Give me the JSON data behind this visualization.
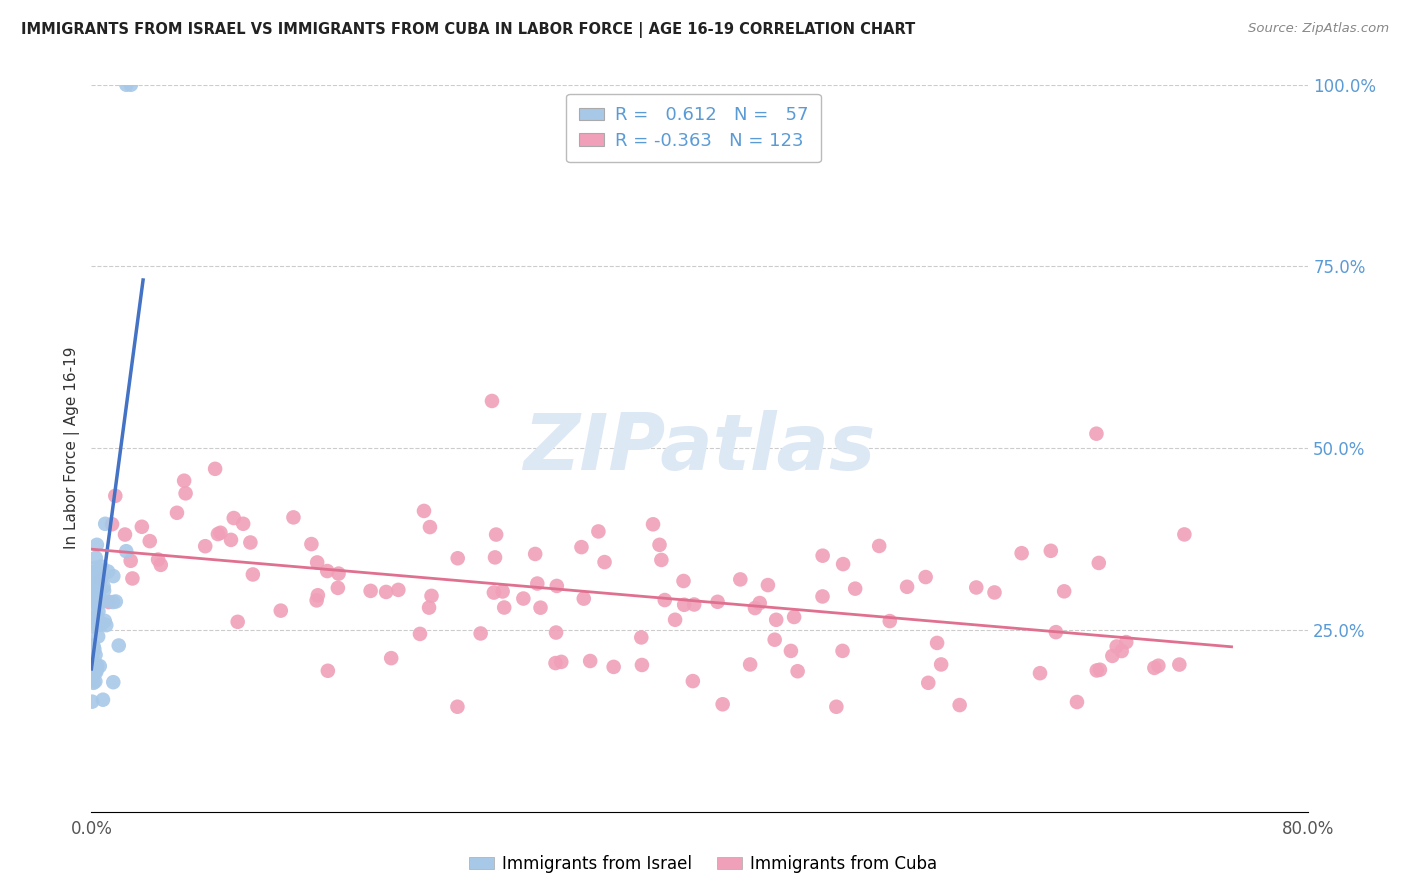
{
  "title": "IMMIGRANTS FROM ISRAEL VS IMMIGRANTS FROM CUBA IN LABOR FORCE | AGE 16-19 CORRELATION CHART",
  "source": "Source: ZipAtlas.com",
  "ylabel": "In Labor Force | Age 16-19",
  "xlim": [
    0.0,
    0.8
  ],
  "ylim": [
    0.0,
    1.0
  ],
  "israel_R": 0.612,
  "israel_N": 57,
  "cuba_R": -0.363,
  "cuba_N": 123,
  "israel_color": "#a8c8e8",
  "cuba_color": "#f0a0b8",
  "israel_line_color": "#4472c4",
  "cuba_line_color": "#e07090",
  "watermark_color": "#dde8f5",
  "grid_color": "#cccccc",
  "right_tick_color": "#5b9bd5",
  "title_color": "#222222",
  "source_color": "#888888",
  "ylabel_color": "#333333"
}
